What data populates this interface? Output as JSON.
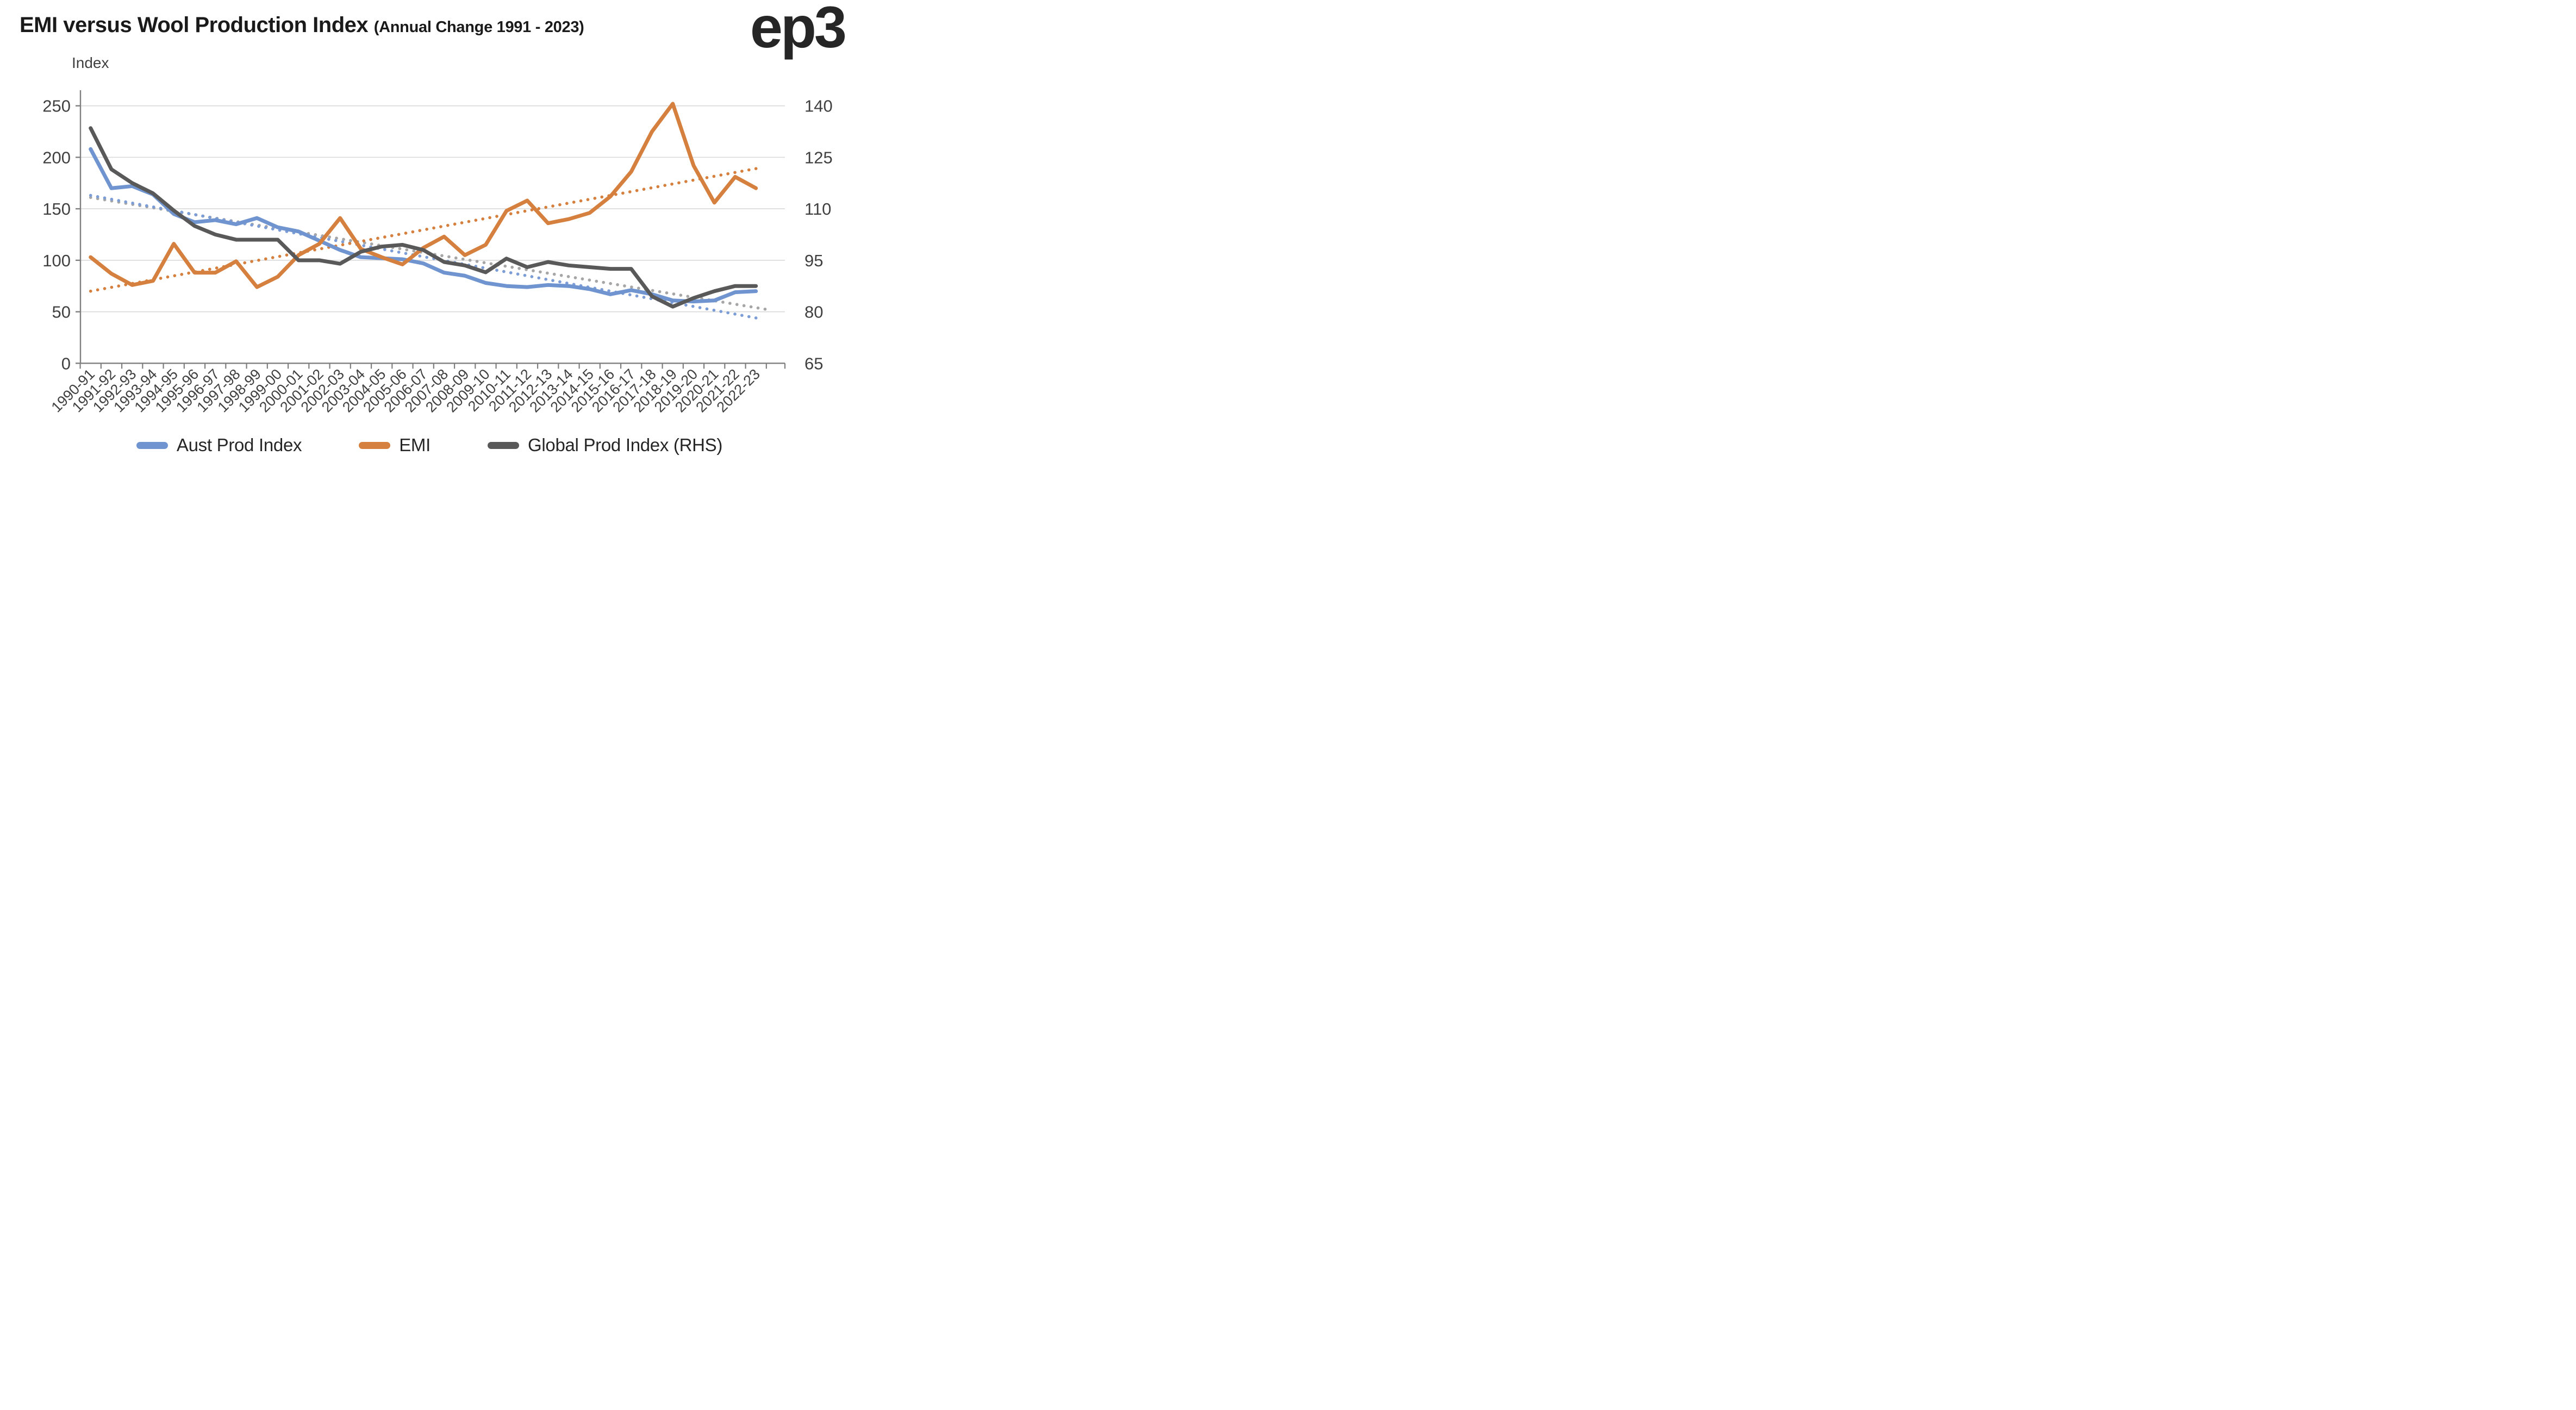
{
  "chart_data": {
    "type": "line",
    "title": "EMI versus Wool Production Index",
    "subtitle": "(Annual Change 1991 - 2023)",
    "logo": "ep3",
    "grid": "horizontal",
    "legend_position": "bottom",
    "colors": {
      "aust_prod": "#6F94CF",
      "emi": "#D5803E",
      "global_prod": "#595959",
      "aust_trend": "#7D9DD6",
      "emi_trend": "#D5803E",
      "global_trend": "#A6A6A6",
      "gridline": "#D9D9D9",
      "axis": "#7F7F7F",
      "tick_text": "#404040"
    },
    "left_axis": {
      "label": "Index",
      "min": 0,
      "max": 250,
      "ticks": [
        0,
        50,
        100,
        150,
        200,
        250
      ]
    },
    "right_axis": {
      "label": "RHS",
      "min": 65,
      "max": 140,
      "ticks": [
        65,
        80,
        95,
        110,
        125,
        140
      ]
    },
    "categories": [
      "1990-91",
      "1991-92",
      "1992-93",
      "1993-94",
      "1994-95",
      "1995-96",
      "1996-97",
      "1997-98",
      "1998-99",
      "1999-00",
      "2000-01",
      "2001-02",
      "2002-03",
      "2003-04",
      "2004-05",
      "2005-06",
      "2006-07",
      "2007-08",
      "2008-09",
      "2009-10",
      "2010-11",
      "2011-12",
      "2012-13",
      "2013-14",
      "2014-15",
      "2015-16",
      "2016-17",
      "2017-18",
      "2018-19",
      "2019-20",
      "2020-21",
      "2021-22",
      "2022-23"
    ],
    "series": [
      {
        "name": "Aust Prod Index",
        "axis": "left",
        "color": "#6F94CF",
        "values": [
          208,
          170,
          172,
          164,
          145,
          137,
          139,
          135,
          141,
          132,
          128,
          119,
          110,
          103,
          102,
          101,
          97,
          88,
          85,
          78,
          75,
          74,
          76,
          75,
          72,
          67,
          71,
          67,
          61,
          60,
          61,
          69,
          70
        ]
      },
      {
        "name": "EMI",
        "axis": "left",
        "color": "#D5803E",
        "values": [
          103,
          87,
          76,
          80,
          116,
          88,
          88,
          99,
          74,
          84,
          105,
          116,
          141,
          111,
          103,
          96,
          112,
          123,
          105,
          115,
          148,
          158,
          136,
          140,
          146,
          162,
          186,
          225,
          252,
          192,
          156,
          181,
          170
        ]
      },
      {
        "name": "Global Prod Index (RHS)",
        "axis": "right",
        "color": "#595959",
        "values": [
          133.5,
          121.5,
          117.5,
          114.5,
          109.5,
          105,
          102.5,
          101,
          101,
          101,
          95,
          95,
          94,
          97.5,
          99,
          99.5,
          98,
          94.5,
          93.5,
          91.5,
          95.5,
          93,
          94.5,
          93.5,
          93,
          92.5,
          92.5,
          84.5,
          81.5,
          84,
          86,
          87.5,
          87.5
        ]
      }
    ],
    "trendlines": [
      {
        "name": "Global Prod Index trend",
        "axis": "right",
        "color": "#A6A6A6",
        "start_x": 0,
        "start_value": 113.3,
        "end_x": 32.7,
        "end_value": 80.5
      },
      {
        "name": "Aust Prod Index trend",
        "axis": "left",
        "color": "#7D9DD6",
        "start_x": 0,
        "start_value": 163,
        "end_x": 32,
        "end_value": 44
      },
      {
        "name": "EMI trend",
        "axis": "left",
        "color": "#D5803E",
        "start_x": 0,
        "start_value": 70,
        "end_x": 32,
        "end_value": 189
      }
    ]
  }
}
